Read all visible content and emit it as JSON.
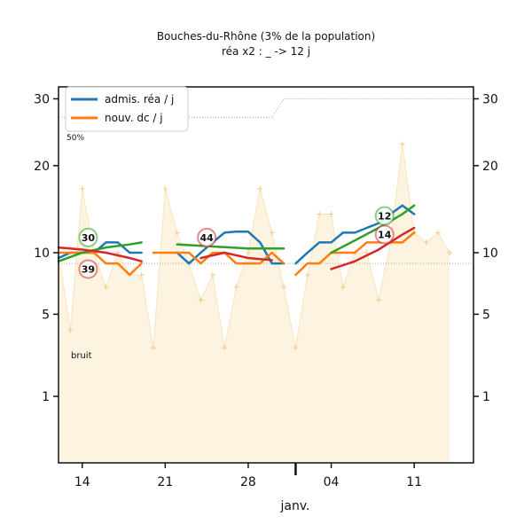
{
  "chart_data": {
    "type": "line",
    "title": "Bouches-du-Rhône (3% de la population)",
    "subtitle": "réa x2 : _ -> 12 j",
    "xlabel": "janv.",
    "x_ticks": [
      {
        "day": 0,
        "label": "14"
      },
      {
        "day": 7,
        "label": "21"
      },
      {
        "day": 14,
        "label": "28"
      },
      {
        "day": 21,
        "label": "04"
      },
      {
        "day": 28,
        "label": "11"
      }
    ],
    "x_range": [
      -2,
      33
    ],
    "y_ticks": [
      1,
      5,
      10,
      20,
      30
    ],
    "ylim": [
      0,
      32
    ],
    "y_scale": "sqrt",
    "legend": {
      "placement": "top-left",
      "entries": [
        {
          "label": "admis. réa / j",
          "color": "#1f77b4"
        },
        {
          "label": "nouv. dc / j",
          "color": "#ff7f0e"
        }
      ]
    },
    "annotations": {
      "threshold_label": "50%",
      "noise_label": "bruit"
    },
    "reference_line": {
      "x": [
        -2,
        16,
        17,
        33
      ],
      "y": [
        27,
        27,
        30,
        30
      ]
    },
    "noise_line": {
      "x": [
        -2,
        33
      ],
      "y": [
        9,
        9
      ]
    },
    "daily_deaths": {
      "x": [
        -2,
        -1,
        0,
        1,
        2,
        3,
        4,
        5,
        6,
        7,
        8,
        9,
        10,
        11,
        12,
        13,
        14,
        15,
        16,
        17,
        18,
        19,
        20,
        21,
        22,
        23,
        24,
        25,
        26,
        27,
        28,
        29,
        30,
        31
      ],
      "values": [
        10,
        4,
        17,
        10,
        7,
        10,
        8,
        8,
        3,
        17,
        12,
        9,
        6,
        8,
        3,
        7,
        10,
        17,
        12,
        7,
        3,
        8,
        14,
        14,
        7,
        10,
        10,
        6,
        11,
        23,
        12,
        11,
        12,
        10
      ]
    },
    "series": [
      {
        "color": "#1f77b4",
        "x": [
          -2,
          -1,
          0,
          1,
          2,
          3,
          4,
          5
        ],
        "values": [
          9.5,
          10,
          10,
          10,
          11,
          11,
          10,
          10
        ]
      },
      {
        "color": "#1f77b4",
        "x": [
          8,
          9,
          10,
          11,
          12,
          13,
          14,
          15,
          16,
          17
        ],
        "values": [
          10,
          9,
          10,
          11,
          12,
          12.1,
          12.1,
          11,
          9,
          9
        ]
      },
      {
        "color": "#1f77b4",
        "x": [
          18,
          19,
          20,
          21,
          22,
          23,
          24,
          25,
          26,
          27,
          28
        ],
        "values": [
          9,
          10,
          11,
          11,
          12,
          12,
          12.5,
          13,
          14,
          15,
          14
        ]
      },
      {
        "color": "#ff7f0e",
        "x": [
          -2,
          -1,
          0,
          1,
          2,
          3,
          4,
          5
        ],
        "values": [
          10,
          10,
          10,
          10,
          9,
          9,
          8,
          9
        ]
      },
      {
        "color": "#ff7f0e",
        "x": [
          6,
          7,
          8,
          9,
          10,
          11,
          12,
          13,
          14,
          15,
          16,
          17
        ],
        "values": [
          10,
          10,
          10,
          10,
          9,
          10,
          10,
          9,
          9,
          9,
          10,
          9
        ]
      },
      {
        "color": "#ff7f0e",
        "x": [
          18,
          19,
          20,
          21,
          22,
          23,
          24,
          25,
          26,
          27,
          28
        ],
        "values": [
          8,
          9,
          9,
          10,
          10,
          10,
          11,
          11,
          11,
          11,
          12
        ]
      },
      {
        "color": "#2ca02c",
        "x": [
          -2,
          0,
          2,
          4,
          5
        ],
        "values": [
          9.2,
          10,
          10.5,
          10.8,
          11
        ]
      },
      {
        "color": "#2ca02c",
        "x": [
          8,
          11,
          14,
          17
        ],
        "values": [
          10.8,
          10.6,
          10.4,
          10.4
        ]
      },
      {
        "color": "#2ca02c",
        "x": [
          21,
          23,
          25,
          27,
          28
        ],
        "values": [
          10,
          11.2,
          12.5,
          14,
          15
        ]
      },
      {
        "color": "#d62728",
        "x": [
          -2,
          0,
          2,
          4,
          5
        ],
        "values": [
          10.5,
          10.3,
          10,
          9.5,
          9.2
        ]
      },
      {
        "color": "#d62728",
        "x": [
          10,
          12,
          14,
          16
        ],
        "values": [
          9.5,
          10,
          9.5,
          9.3
        ]
      },
      {
        "color": "#d62728",
        "x": [
          21,
          23,
          25,
          27,
          28
        ],
        "values": [
          8.5,
          9.2,
          10.3,
          11.8,
          12.5
        ]
      }
    ],
    "badges": [
      {
        "day": 0.5,
        "y": 11.5,
        "label": "30",
        "color": "#2ca02c"
      },
      {
        "day": 0.5,
        "y": 8.5,
        "label": "39",
        "color": "#d62728"
      },
      {
        "day": 10.5,
        "y": 11.5,
        "label": "44",
        "color": "#d62728"
      },
      {
        "day": 25.5,
        "y": 13.8,
        "label": "12",
        "color": "#2ca02c"
      },
      {
        "day": 25.5,
        "y": 11.8,
        "label": "14",
        "color": "#d62728"
      }
    ]
  }
}
